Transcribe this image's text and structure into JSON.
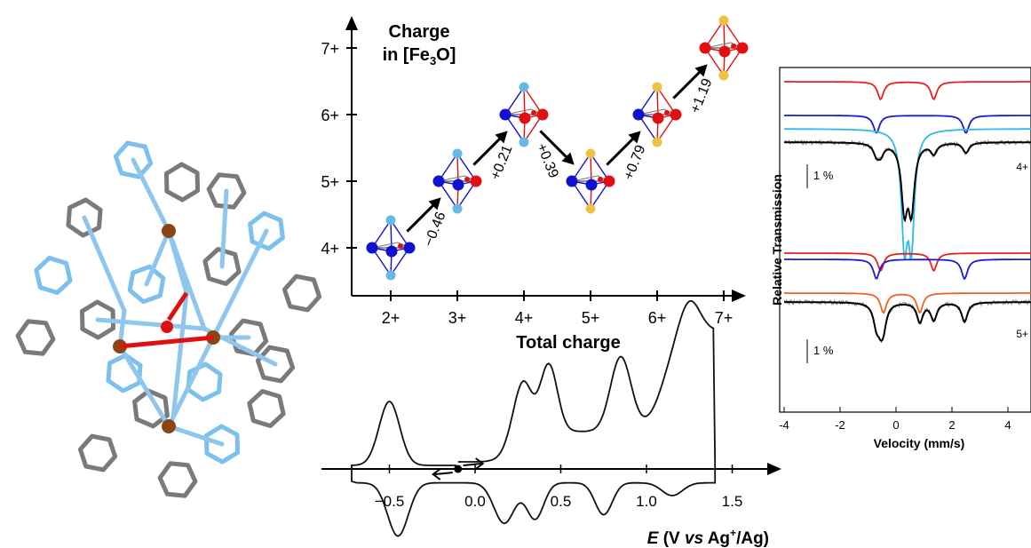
{
  "charge_diagram": {
    "y_title_line1": "Charge",
    "y_title_line2_prefix": "in [Fe",
    "y_title_line2_sub": "3",
    "y_title_line2_suffix": "O]",
    "x_title": "Total charge",
    "y_ticks": [
      "4+",
      "5+",
      "6+",
      "7+"
    ],
    "x_ticks": [
      "2+",
      "3+",
      "4+",
      "5+",
      "6+",
      "7+"
    ],
    "states": [
      {
        "total": 2,
        "fe3o": 4,
        "apex_color": "#66b8e6",
        "core": [
          "#1010d0",
          "#1010d0",
          "#1010d0"
        ]
      },
      {
        "total": 3,
        "fe3o": 5,
        "apex_color": "#66b8e6",
        "core": [
          "#1010d0",
          "#1010d0",
          "#e01010"
        ]
      },
      {
        "total": 4,
        "fe3o": 6,
        "apex_color": "#66b8e6",
        "core": [
          "#1010d0",
          "#e01010",
          "#e01010"
        ]
      },
      {
        "total": 5,
        "fe3o": 5,
        "apex_color": "#f0c040",
        "core": [
          "#1010d0",
          "#1010d0",
          "#e01010"
        ]
      },
      {
        "total": 6,
        "fe3o": 6,
        "apex_color": "#f0c040",
        "core": [
          "#1010d0",
          "#e01010",
          "#e01010"
        ]
      },
      {
        "total": 7,
        "fe3o": 7,
        "apex_color": "#f0c040",
        "core": [
          "#e01010",
          "#e01010",
          "#e01010"
        ]
      }
    ],
    "transitions": [
      {
        "from": 2,
        "to": 3,
        "label": "−0.46"
      },
      {
        "from": 3,
        "to": 4,
        "label": "+0.21"
      },
      {
        "from": 4,
        "to": 5,
        "label": "+0.39"
      },
      {
        "from": 5,
        "to": 6,
        "label": "+0.79"
      },
      {
        "from": 6,
        "to": 7,
        "label": "+1.19"
      }
    ]
  },
  "chart_data": [
    {
      "type": "line",
      "name": "cyclic voltammogram",
      "xlabel_italic": "E",
      "xlabel_rest": " (V ",
      "xlabel_italic2": "vs",
      "xlabel_tail": " Ag",
      "xlabel_sup": "+",
      "xlabel_end": "/Ag)",
      "x_ticks": [
        -0.5,
        0.0,
        0.5,
        1.0,
        1.5
      ],
      "x_tick_labels": [
        "−0.5",
        "0.0",
        "0.5",
        "1.0",
        "1.5"
      ],
      "xlim": [
        -0.75,
        1.65
      ],
      "start_point": -0.1,
      "peaks_E": [
        -0.46,
        0.21,
        0.39,
        0.79,
        1.19
      ]
    },
    {
      "type": "line",
      "name": "Mossbauer spectra",
      "xlabel": "Velocity (mm/s)",
      "ylabel": "Relative Transmission",
      "x_ticks": [
        -4,
        -2,
        0,
        2,
        4
      ],
      "x_tick_labels": [
        "-4",
        "-2",
        "0",
        "2",
        "4"
      ],
      "xlim": [
        -4,
        5
      ],
      "scale_bar_label": "1 %",
      "panels": [
        {
          "label": "4+",
          "components": [
            {
              "color": "#e82020",
              "lines": [
                -0.55,
                1.35
              ],
              "depth": 0.9
            },
            {
              "color": "#1a1ad0",
              "lines": [
                -0.7,
                2.5
              ],
              "depth": 0.9
            },
            {
              "color": "#30b8ee",
              "lines": [
                0.3,
                0.55
              ],
              "depth": 5.5
            }
          ]
        },
        {
          "label": "5+",
          "components": [
            {
              "color": "#e82020",
              "lines": [
                -0.55,
                1.35
              ],
              "depth": 0.9
            },
            {
              "color": "#1a1ad0",
              "lines": [
                -0.7,
                2.45
              ],
              "depth": 1.0
            },
            {
              "color": "#f06020",
              "lines": [
                -0.45,
                0.85
              ],
              "depth": 1.0
            }
          ]
        }
      ]
    }
  ],
  "structure": {
    "description_name": "molecular-structure"
  }
}
